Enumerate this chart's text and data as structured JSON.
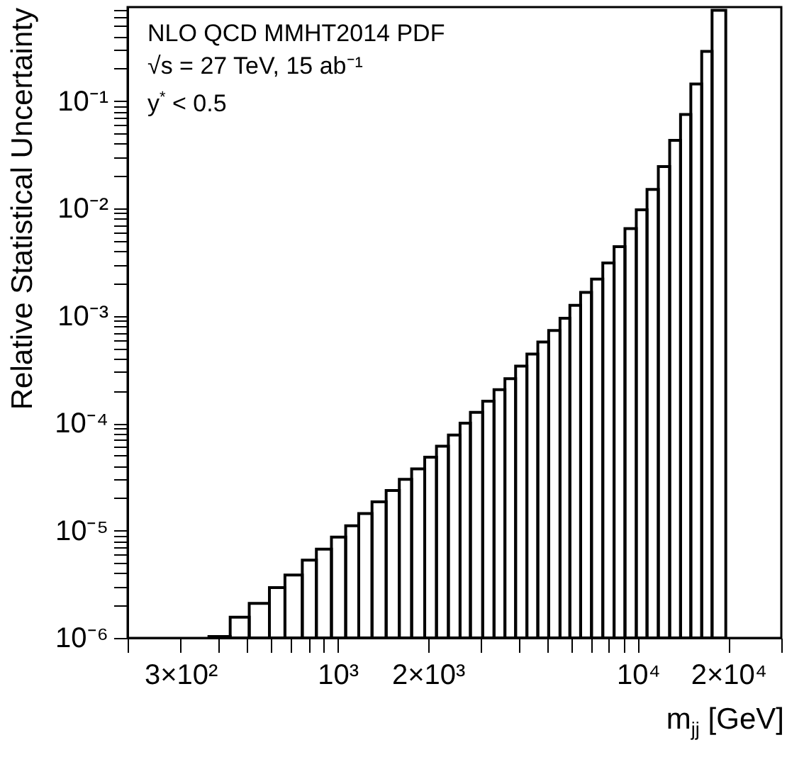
{
  "chart_data": {
    "type": "histogram",
    "log": "xy",
    "color": "#000000",
    "xlabel": "m$_{jj}$ [GeV]",
    "ylabel": "Relative Statistical Uncertainty",
    "annotations": [
      "NLO QCD MMHT2014 PDF",
      "√s = 27 TeV, 15 ab⁻¹",
      "y$^{*}$ < 0.5"
    ],
    "bins": [
      373,
      439,
      508,
      593,
      668,
      763,
      850,
      954,
      1064,
      1176,
      1302,
      1451,
      1605,
      1764,
      1950,
      2134,
      2338,
      2557,
      2768,
      3041,
      3317,
      3606,
      3914,
      4268,
      4640,
      5043,
      5501,
      5933,
      6442,
      7003,
      7636,
      8326,
      9050,
      9871,
      10717,
      11687,
      12749,
      13857,
      14993,
      16298,
      17643,
      19600
    ],
    "values": [
      1.03e-06,
      1.56e-06,
      2.1e-06,
      2.94e-06,
      3.86e-06,
      5.3e-06,
      6.7e-06,
      8.7e-06,
      1.11e-05,
      1.44e-05,
      1.85e-05,
      2.36e-05,
      3e-05,
      3.75e-05,
      4.83e-05,
      6.1e-05,
      7.75e-05,
      0.0001,
      0.000126,
      0.00016,
      0.000205,
      0.00026,
      0.00034,
      0.00044,
      0.00057,
      0.00073,
      0.00095,
      0.00125,
      0.00165,
      0.0022,
      0.0031,
      0.0044,
      0.0065,
      0.0097,
      0.015,
      0.0245,
      0.043,
      0.075,
      0.144,
      0.29,
      0.7
    ],
    "xlim": [
      200,
      30000
    ],
    "xticks": [
      {
        "value": 200,
        "label": null
      },
      {
        "value": 300,
        "label": "3×10²"
      },
      {
        "value": 400,
        "label": null
      },
      {
        "value": 500,
        "label": null
      },
      {
        "value": 600,
        "label": null
      },
      {
        "value": 700,
        "label": null
      },
      {
        "value": 800,
        "label": null
      },
      {
        "value": 900,
        "label": null
      },
      {
        "value": 1000,
        "label": "10³"
      },
      {
        "value": 2000,
        "label": "2×10³"
      },
      {
        "value": 3000,
        "label": null
      },
      {
        "value": 4000,
        "label": null
      },
      {
        "value": 5000,
        "label": null
      },
      {
        "value": 6000,
        "label": null
      },
      {
        "value": 7000,
        "label": null
      },
      {
        "value": 8000,
        "label": null
      },
      {
        "value": 9000,
        "label": null
      },
      {
        "value": 10000,
        "label": "10⁴"
      },
      {
        "value": 20000,
        "label": "2×10⁴"
      },
      {
        "value": 30000,
        "label": null
      }
    ],
    "ylim": [
      1e-06,
      0.75
    ],
    "yticks": [
      {
        "value": 1e-06,
        "label": "10⁻⁶"
      },
      {
        "value": 2e-06,
        "label": null
      },
      {
        "value": 3e-06,
        "label": null
      },
      {
        "value": 4e-06,
        "label": null
      },
      {
        "value": 5e-06,
        "label": null
      },
      {
        "value": 6e-06,
        "label": null
      },
      {
        "value": 7e-06,
        "label": null
      },
      {
        "value": 8e-06,
        "label": null
      },
      {
        "value": 9e-06,
        "label": null
      },
      {
        "value": 1e-05,
        "label": "10⁻⁵"
      },
      {
        "value": 2e-05,
        "label": null
      },
      {
        "value": 3e-05,
        "label": null
      },
      {
        "value": 4e-05,
        "label": null
      },
      {
        "value": 5e-05,
        "label": null
      },
      {
        "value": 6e-05,
        "label": null
      },
      {
        "value": 7e-05,
        "label": null
      },
      {
        "value": 8e-05,
        "label": null
      },
      {
        "value": 9e-05,
        "label": null
      },
      {
        "value": 0.0001,
        "label": "10⁻⁴"
      },
      {
        "value": 0.0002,
        "label": null
      },
      {
        "value": 0.0003,
        "label": null
      },
      {
        "value": 0.0004,
        "label": null
      },
      {
        "value": 0.0005,
        "label": null
      },
      {
        "value": 0.0006,
        "label": null
      },
      {
        "value": 0.0007,
        "label": null
      },
      {
        "value": 0.0008,
        "label": null
      },
      {
        "value": 0.0009,
        "label": null
      },
      {
        "value": 0.001,
        "label": "10⁻³"
      },
      {
        "value": 0.002,
        "label": null
      },
      {
        "value": 0.003,
        "label": null
      },
      {
        "value": 0.004,
        "label": null
      },
      {
        "value": 0.005,
        "label": null
      },
      {
        "value": 0.006,
        "label": null
      },
      {
        "value": 0.007,
        "label": null
      },
      {
        "value": 0.008,
        "label": null
      },
      {
        "value": 0.009,
        "label": null
      },
      {
        "value": 0.01,
        "label": "10⁻²"
      },
      {
        "value": 0.02,
        "label": null
      },
      {
        "value": 0.03,
        "label": null
      },
      {
        "value": 0.04,
        "label": null
      },
      {
        "value": 0.05,
        "label": null
      },
      {
        "value": 0.06,
        "label": null
      },
      {
        "value": 0.07,
        "label": null
      },
      {
        "value": 0.08,
        "label": null
      },
      {
        "value": 0.09,
        "label": null
      },
      {
        "value": 0.1,
        "label": "10⁻¹"
      },
      {
        "value": 0.2,
        "label": null
      },
      {
        "value": 0.3,
        "label": null
      },
      {
        "value": 0.4,
        "label": null
      },
      {
        "value": 0.5,
        "label": null
      },
      {
        "value": 0.6,
        "label": null
      },
      {
        "value": 0.7,
        "label": null
      }
    ]
  }
}
